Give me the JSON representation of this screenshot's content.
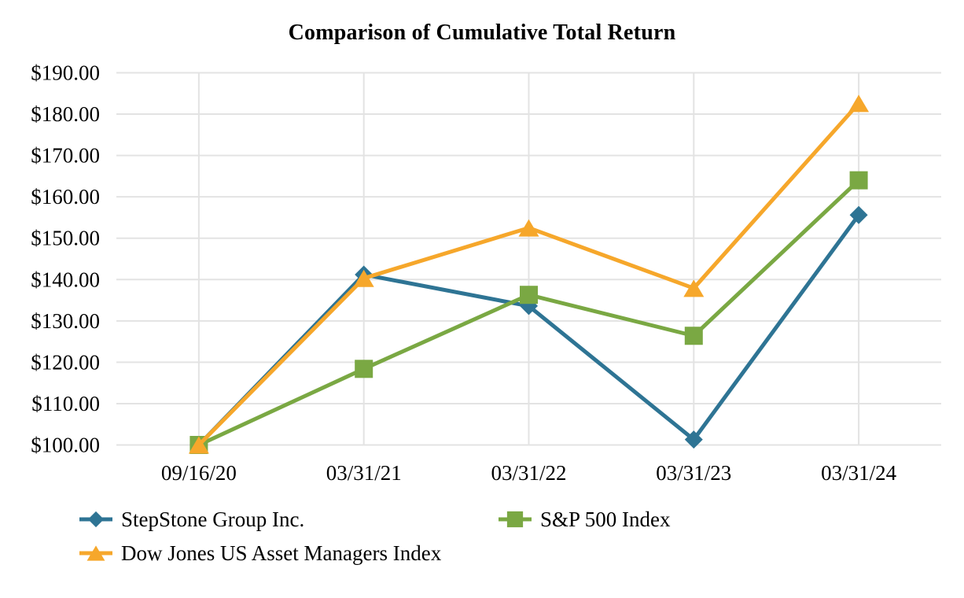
{
  "chart_data": {
    "type": "line",
    "title": "Comparison of Cumulative Total Return",
    "categories": [
      "09/16/20",
      "03/31/21",
      "03/31/22",
      "03/31/23",
      "03/31/24"
    ],
    "series": [
      {
        "name": "StepStone Group Inc.",
        "marker": "diamond",
        "color": "#2e7494",
        "values": [
          100.0,
          141.2,
          133.6,
          101.3,
          155.6
        ]
      },
      {
        "name": "S&P 500 Index",
        "marker": "square",
        "color": "#7aa843",
        "values": [
          100.0,
          118.4,
          136.3,
          126.4,
          164.0
        ]
      },
      {
        "name": "Dow Jones US Asset Managers Index",
        "marker": "triangle",
        "color": "#f6a72b",
        "values": [
          100.0,
          140.3,
          152.5,
          137.9,
          182.6
        ]
      }
    ],
    "xlabel": "",
    "ylabel": "",
    "ylim": [
      100,
      190
    ],
    "y_axis": {
      "min": 100,
      "max": 190,
      "step": 10,
      "tick_labels": [
        "$100.00",
        "$110.00",
        "$120.00",
        "$130.00",
        "$140.00",
        "$150.00",
        "$160.00",
        "$170.00",
        "$180.00",
        "$190.00"
      ]
    },
    "grid": true,
    "gridline_color": "#e3e3e3",
    "legend_position": "bottom-left"
  }
}
